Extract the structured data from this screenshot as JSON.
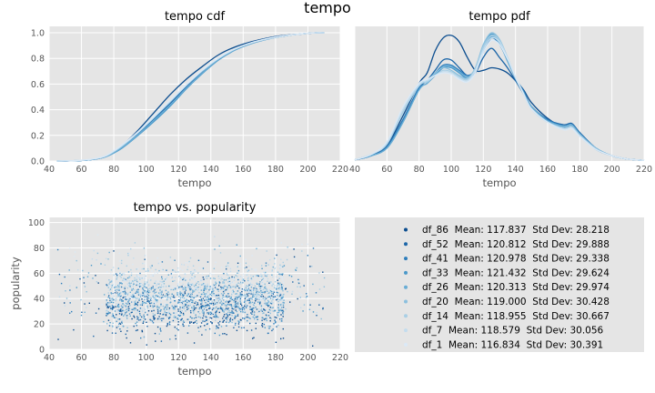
{
  "figure": {
    "suptitle": "tempo"
  },
  "palette": [
    "#0b4d8f",
    "#1c66a8",
    "#2e7ebc",
    "#4a98c9",
    "#69add5",
    "#8cc0de",
    "#a9cfe5",
    "#c4ddee",
    "#dbe9f6"
  ],
  "chart_data": [
    {
      "type": "line",
      "title": "tempo cdf",
      "xlabel": "tempo",
      "ylabel": "",
      "xlim": [
        40,
        220
      ],
      "ylim": [
        0,
        1.05
      ],
      "xticks": [
        "40",
        "60",
        "80",
        "100",
        "120",
        "140",
        "160",
        "180",
        "200",
        "220"
      ],
      "yticks": [
        "0.0",
        "0.2",
        "0.4",
        "0.6",
        "0.8",
        "1.0"
      ],
      "grid": true,
      "series": [
        {
          "name": "df_86",
          "x": [
            45,
            55,
            65,
            75,
            85,
            95,
            105,
            115,
            125,
            135,
            145,
            155,
            165,
            175,
            185,
            195,
            205,
            210
          ],
          "y": [
            0,
            0.002,
            0.01,
            0.04,
            0.12,
            0.24,
            0.38,
            0.52,
            0.64,
            0.74,
            0.83,
            0.89,
            0.93,
            0.96,
            0.98,
            0.99,
            1.0,
            1.0
          ]
        },
        {
          "name": "df_52",
          "x": [
            45,
            55,
            65,
            75,
            85,
            95,
            105,
            115,
            125,
            135,
            145,
            155,
            165,
            175,
            185,
            195,
            205,
            210
          ],
          "y": [
            0,
            0.002,
            0.009,
            0.035,
            0.11,
            0.21,
            0.33,
            0.45,
            0.58,
            0.7,
            0.8,
            0.87,
            0.92,
            0.955,
            0.975,
            0.99,
            1.0,
            1.0
          ]
        },
        {
          "name": "df_41",
          "x": [
            45,
            55,
            65,
            75,
            85,
            95,
            105,
            115,
            125,
            135,
            145,
            155,
            165,
            175,
            185,
            195,
            205,
            210
          ],
          "y": [
            0,
            0.002,
            0.009,
            0.034,
            0.105,
            0.205,
            0.32,
            0.44,
            0.57,
            0.69,
            0.795,
            0.87,
            0.92,
            0.955,
            0.975,
            0.99,
            1.0,
            1.0
          ]
        },
        {
          "name": "df_33",
          "x": [
            45,
            55,
            65,
            75,
            85,
            95,
            105,
            115,
            125,
            135,
            145,
            155,
            165,
            175,
            185,
            195,
            205,
            210
          ],
          "y": [
            0,
            0.002,
            0.009,
            0.033,
            0.1,
            0.2,
            0.31,
            0.43,
            0.565,
            0.685,
            0.79,
            0.865,
            0.915,
            0.95,
            0.975,
            0.99,
            1.0,
            1.0
          ]
        },
        {
          "name": "df_26",
          "x": [
            45,
            55,
            65,
            75,
            85,
            95,
            105,
            115,
            125,
            135,
            145,
            155,
            165,
            175,
            185,
            195,
            205,
            210
          ],
          "y": [
            0,
            0.002,
            0.009,
            0.034,
            0.105,
            0.205,
            0.32,
            0.44,
            0.57,
            0.69,
            0.795,
            0.868,
            0.918,
            0.952,
            0.975,
            0.99,
            1.0,
            1.0
          ]
        },
        {
          "name": "df_20",
          "x": [
            45,
            55,
            65,
            75,
            85,
            95,
            105,
            115,
            125,
            135,
            145,
            155,
            165,
            175,
            185,
            195,
            205,
            210
          ],
          "y": [
            0,
            0.003,
            0.011,
            0.038,
            0.115,
            0.22,
            0.34,
            0.465,
            0.59,
            0.705,
            0.8,
            0.872,
            0.92,
            0.952,
            0.975,
            0.99,
            1.0,
            1.0
          ]
        },
        {
          "name": "df_14",
          "x": [
            45,
            55,
            65,
            75,
            85,
            95,
            105,
            115,
            125,
            135,
            145,
            155,
            165,
            175,
            185,
            195,
            205,
            210
          ],
          "y": [
            0,
            0.003,
            0.011,
            0.039,
            0.117,
            0.222,
            0.342,
            0.467,
            0.592,
            0.706,
            0.801,
            0.873,
            0.921,
            0.953,
            0.976,
            0.99,
            1.0,
            1.0
          ]
        },
        {
          "name": "df_7",
          "x": [
            45,
            55,
            65,
            75,
            85,
            95,
            105,
            115,
            125,
            135,
            145,
            155,
            165,
            175,
            185,
            195,
            205,
            210
          ],
          "y": [
            0,
            0.003,
            0.012,
            0.04,
            0.12,
            0.225,
            0.345,
            0.47,
            0.595,
            0.71,
            0.805,
            0.875,
            0.922,
            0.954,
            0.976,
            0.99,
            1.0,
            1.0
          ]
        },
        {
          "name": "df_1",
          "x": [
            45,
            55,
            65,
            75,
            85,
            95,
            105,
            115,
            125,
            135,
            145,
            155,
            165,
            175,
            185,
            195,
            205,
            210
          ],
          "y": [
            0,
            0.003,
            0.013,
            0.042,
            0.125,
            0.23,
            0.35,
            0.475,
            0.6,
            0.712,
            0.806,
            0.876,
            0.923,
            0.955,
            0.977,
            0.99,
            1.0,
            1.0
          ]
        }
      ]
    },
    {
      "type": "line",
      "title": "tempo pdf",
      "xlabel": "tempo",
      "ylabel": "",
      "xlim": [
        40,
        220
      ],
      "xticks": [
        "40",
        "60",
        "80",
        "100",
        "120",
        "140",
        "160",
        "180",
        "200",
        "220"
      ],
      "yticks": [],
      "grid": true,
      "series": [
        {
          "name": "df_86",
          "x": [
            40,
            50,
            60,
            70,
            80,
            85,
            90,
            95,
            100,
            105,
            110,
            115,
            120,
            125,
            130,
            135,
            140,
            145,
            150,
            160,
            170,
            175,
            180,
            190,
            200,
            210,
            220
          ],
          "y": [
            0.01,
            0.04,
            0.12,
            0.35,
            0.6,
            0.68,
            0.85,
            0.95,
            0.97,
            0.92,
            0.8,
            0.7,
            0.7,
            0.72,
            0.71,
            0.68,
            0.62,
            0.55,
            0.45,
            0.33,
            0.26,
            0.27,
            0.2,
            0.09,
            0.04,
            0.015,
            0.005
          ]
        },
        {
          "name": "df_52",
          "x": [
            40,
            50,
            60,
            70,
            80,
            85,
            90,
            95,
            100,
            105,
            110,
            115,
            120,
            125,
            130,
            135,
            140,
            145,
            150,
            160,
            170,
            175,
            180,
            190,
            200,
            210,
            220
          ],
          "y": [
            0.01,
            0.04,
            0.11,
            0.32,
            0.56,
            0.62,
            0.7,
            0.78,
            0.78,
            0.72,
            0.66,
            0.68,
            0.8,
            0.87,
            0.8,
            0.72,
            0.62,
            0.52,
            0.42,
            0.32,
            0.28,
            0.29,
            0.22,
            0.1,
            0.04,
            0.015,
            0.005
          ]
        },
        {
          "name": "df_41",
          "x": [
            40,
            50,
            60,
            70,
            80,
            85,
            90,
            95,
            100,
            105,
            110,
            115,
            120,
            125,
            130,
            135,
            140,
            145,
            150,
            160,
            170,
            175,
            180,
            190,
            200,
            210,
            220
          ],
          "y": [
            0.01,
            0.04,
            0.11,
            0.32,
            0.57,
            0.62,
            0.68,
            0.74,
            0.74,
            0.7,
            0.66,
            0.7,
            0.84,
            0.95,
            0.9,
            0.78,
            0.64,
            0.54,
            0.42,
            0.32,
            0.27,
            0.28,
            0.21,
            0.1,
            0.04,
            0.015,
            0.005
          ]
        },
        {
          "name": "df_33",
          "x": [
            40,
            50,
            60,
            70,
            80,
            85,
            90,
            95,
            100,
            105,
            110,
            115,
            120,
            125,
            130,
            135,
            140,
            145,
            150,
            160,
            170,
            175,
            180,
            190,
            200,
            210,
            220
          ],
          "y": [
            0.01,
            0.04,
            0.1,
            0.3,
            0.55,
            0.6,
            0.66,
            0.72,
            0.72,
            0.68,
            0.64,
            0.7,
            0.88,
            0.98,
            0.92,
            0.78,
            0.64,
            0.52,
            0.42,
            0.31,
            0.27,
            0.28,
            0.21,
            0.1,
            0.04,
            0.015,
            0.005
          ]
        },
        {
          "name": "df_26",
          "x": [
            40,
            50,
            60,
            70,
            80,
            85,
            90,
            95,
            100,
            105,
            110,
            115,
            120,
            125,
            130,
            135,
            140,
            145,
            150,
            160,
            170,
            175,
            180,
            190,
            200,
            210,
            220
          ],
          "y": [
            0.01,
            0.04,
            0.1,
            0.3,
            0.55,
            0.6,
            0.67,
            0.73,
            0.73,
            0.69,
            0.65,
            0.7,
            0.86,
            0.96,
            0.91,
            0.77,
            0.64,
            0.53,
            0.42,
            0.31,
            0.27,
            0.28,
            0.21,
            0.1,
            0.04,
            0.015,
            0.005
          ]
        },
        {
          "name": "df_20",
          "x": [
            40,
            50,
            60,
            70,
            80,
            85,
            90,
            95,
            100,
            105,
            110,
            115,
            120,
            125,
            130,
            135,
            140,
            145,
            150,
            160,
            170,
            175,
            180,
            190,
            200,
            210,
            220
          ],
          "y": [
            0.01,
            0.05,
            0.13,
            0.38,
            0.58,
            0.62,
            0.68,
            0.72,
            0.7,
            0.66,
            0.64,
            0.72,
            0.9,
            0.99,
            0.94,
            0.8,
            0.64,
            0.52,
            0.4,
            0.3,
            0.26,
            0.27,
            0.2,
            0.1,
            0.04,
            0.015,
            0.005
          ]
        },
        {
          "name": "df_14",
          "x": [
            40,
            50,
            60,
            70,
            80,
            85,
            90,
            95,
            100,
            105,
            110,
            115,
            120,
            125,
            130,
            135,
            140,
            145,
            150,
            160,
            170,
            175,
            180,
            190,
            200,
            210,
            220
          ],
          "y": [
            0.01,
            0.05,
            0.13,
            0.38,
            0.58,
            0.61,
            0.66,
            0.7,
            0.69,
            0.65,
            0.63,
            0.71,
            0.88,
            0.97,
            0.93,
            0.8,
            0.64,
            0.52,
            0.4,
            0.3,
            0.25,
            0.26,
            0.2,
            0.09,
            0.04,
            0.015,
            0.005
          ]
        },
        {
          "name": "df_7",
          "x": [
            40,
            50,
            60,
            70,
            80,
            85,
            90,
            95,
            100,
            105,
            110,
            115,
            120,
            125,
            130,
            135,
            140,
            145,
            150,
            160,
            170,
            175,
            180,
            190,
            200,
            210,
            220
          ],
          "y": [
            0.01,
            0.05,
            0.14,
            0.4,
            0.59,
            0.62,
            0.66,
            0.69,
            0.68,
            0.64,
            0.62,
            0.7,
            0.86,
            0.95,
            0.92,
            0.8,
            0.65,
            0.52,
            0.4,
            0.3,
            0.25,
            0.26,
            0.19,
            0.09,
            0.04,
            0.015,
            0.005
          ]
        },
        {
          "name": "df_1",
          "x": [
            40,
            50,
            60,
            70,
            80,
            85,
            90,
            95,
            100,
            105,
            110,
            115,
            120,
            125,
            130,
            135,
            140,
            145,
            150,
            160,
            170,
            175,
            180,
            190,
            200,
            210,
            220
          ],
          "y": [
            0.01,
            0.05,
            0.15,
            0.42,
            0.6,
            0.63,
            0.66,
            0.68,
            0.67,
            0.63,
            0.61,
            0.68,
            0.84,
            0.93,
            0.9,
            0.79,
            0.65,
            0.52,
            0.4,
            0.3,
            0.24,
            0.25,
            0.19,
            0.09,
            0.04,
            0.015,
            0.005
          ]
        }
      ]
    },
    {
      "type": "scatter",
      "title": "tempo vs. popularity",
      "xlabel": "tempo",
      "ylabel": "popularity",
      "xlim": [
        40,
        220
      ],
      "ylim": [
        0,
        104
      ],
      "xticks": [
        "40",
        "60",
        "80",
        "100",
        "120",
        "140",
        "160",
        "180",
        "200",
        "220"
      ],
      "yticks": [
        "0",
        "20",
        "40",
        "60",
        "80",
        "100"
      ],
      "grid": true,
      "density": {
        "x_core": [
          75,
          185
        ],
        "x_full": [
          45,
          210
        ],
        "y_core": [
          10,
          72
        ],
        "y_full": [
          0,
          100
        ]
      }
    }
  ],
  "legend": {
    "entries": [
      {
        "name": "df_86",
        "mean": "117.837",
        "std": "28.218"
      },
      {
        "name": "df_52",
        "mean": "120.812",
        "std": "29.888"
      },
      {
        "name": "df_41",
        "mean": "120.978",
        "std": "29.338"
      },
      {
        "name": "df_33",
        "mean": "121.432",
        "std": "29.624"
      },
      {
        "name": "df_26",
        "mean": "120.313",
        "std": "29.974"
      },
      {
        "name": "df_20",
        "mean": "119.000",
        "std": "30.428"
      },
      {
        "name": "df_14",
        "mean": "118.955",
        "std": "30.667"
      },
      {
        "name": "df_7",
        "mean": "118.579",
        "std": "30.056"
      },
      {
        "name": "df_1",
        "mean": "116.834",
        "std": "30.391"
      }
    ],
    "mean_label": "Mean:",
    "std_label": "Std Dev:"
  }
}
